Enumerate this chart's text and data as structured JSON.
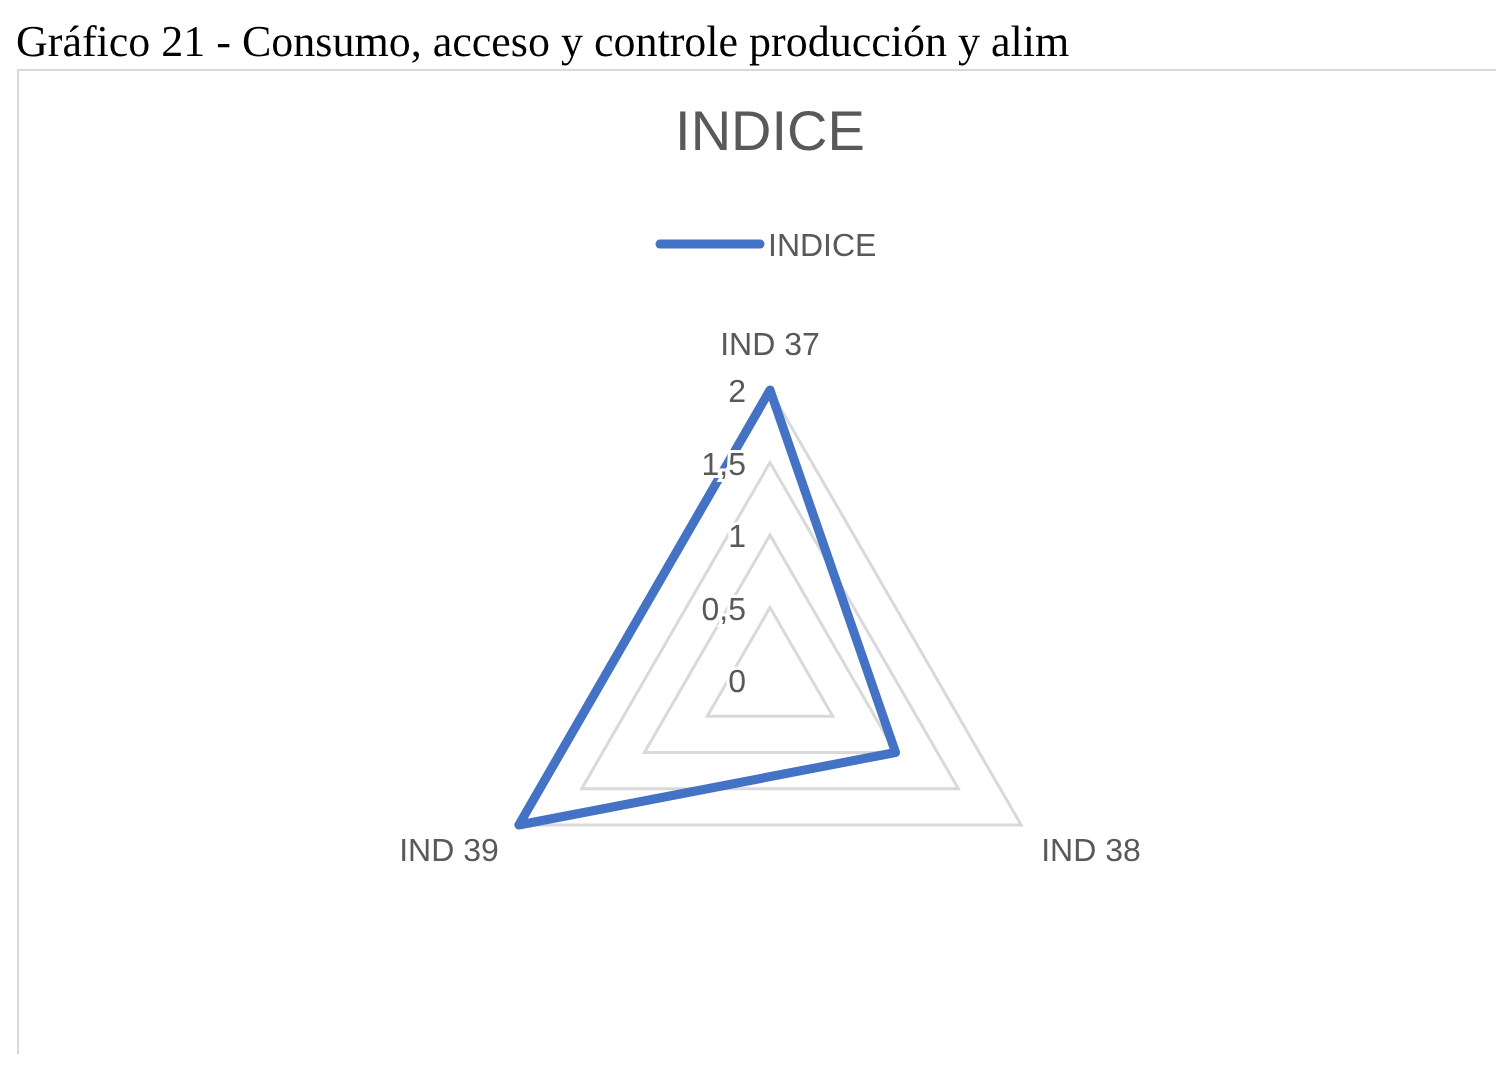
{
  "chart_data": {
    "type": "radar",
    "title": "INDICE",
    "annotations": [
      "Gráfico 21 - Consumo, acceso y controle producción y alim"
    ],
    "categories": [
      "IND 37",
      "IND 38",
      "IND 39"
    ],
    "ylim": [
      0,
      2
    ],
    "yticks": [
      {
        "value": 0,
        "label": "0"
      },
      {
        "value": 0.5,
        "label": "0,5"
      },
      {
        "value": 1,
        "label": "1"
      },
      {
        "value": 1.5,
        "label": "1,5"
      },
      {
        "value": 2,
        "label": "2"
      }
    ],
    "grid": true,
    "legend": "top",
    "series": [
      {
        "name": "INDICE",
        "color": "#4472c4",
        "values": [
          2,
          1,
          2
        ]
      }
    ]
  }
}
